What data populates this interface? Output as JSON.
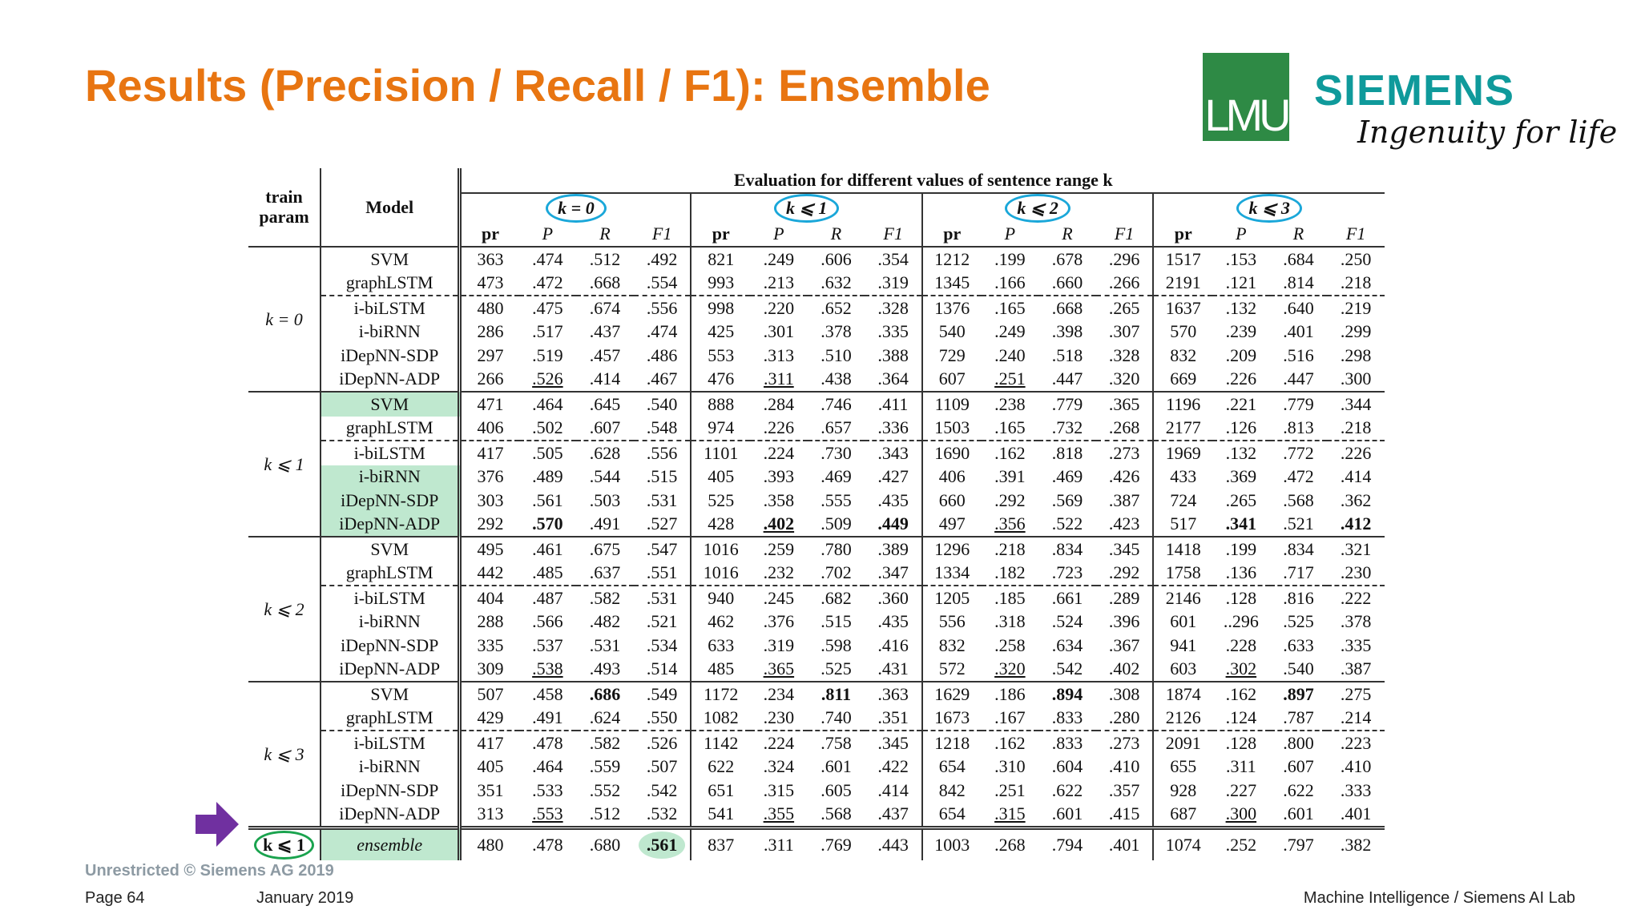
{
  "title": "Results (Precision / Recall / F1): Ensemble",
  "logos": {
    "lmu": "LMU",
    "siemens": "SIEMENS",
    "tagline": "Ingenuity for life"
  },
  "table": {
    "col_headers": {
      "train_param": "train param",
      "model": "Model",
      "evaluation": "Evaluation for different values of sentence range k",
      "groups": [
        "k = 0",
        "k ⩽ 1",
        "k ⩽ 2",
        "k ⩽ 3"
      ],
      "metrics": [
        "pr",
        "P",
        "R",
        "F1"
      ]
    },
    "blocks": [
      {
        "param": "k = 0",
        "rows": [
          {
            "model": "SVM",
            "values": [
              "363",
              ".474",
              ".512",
              ".492",
              "821",
              ".249",
              ".606",
              ".354",
              "1212",
              ".199",
              ".678",
              ".296",
              "1517",
              ".153",
              ".684",
              ".250"
            ]
          },
          {
            "model": "graphLSTM",
            "values": [
              "473",
              ".472",
              ".668",
              ".554",
              "993",
              ".213",
              ".632",
              ".319",
              "1345",
              ".166",
              ".660",
              ".266",
              "2191",
              ".121",
              ".814",
              ".218"
            ]
          },
          {
            "model": "i-biLSTM",
            "values": [
              "480",
              ".475",
              ".674",
              ".556",
              "998",
              ".220",
              ".652",
              ".328",
              "1376",
              ".165",
              ".668",
              ".265",
              "1637",
              ".132",
              ".640",
              ".219"
            ]
          },
          {
            "model": "i-biRNN",
            "values": [
              "286",
              ".517",
              ".437",
              ".474",
              "425",
              ".301",
              ".378",
              ".335",
              "540",
              ".249",
              ".398",
              ".307",
              "570",
              ".239",
              ".401",
              ".299"
            ]
          },
          {
            "model": "iDepNN-SDP",
            "values": [
              "297",
              ".519",
              ".457",
              ".486",
              "553",
              ".313",
              ".510",
              ".388",
              "729",
              ".240",
              ".518",
              ".328",
              "832",
              ".209",
              ".516",
              ".298"
            ]
          },
          {
            "model": "iDepNN-ADP",
            "values": [
              "266",
              ".526",
              ".414",
              ".467",
              "476",
              ".311",
              ".438",
              ".364",
              "607",
              ".251",
              ".447",
              ".320",
              "669",
              ".226",
              ".447",
              ".300"
            ]
          }
        ]
      },
      {
        "param": "k ⩽ 1",
        "rows": [
          {
            "model": "SVM",
            "values": [
              "471",
              ".464",
              ".645",
              ".540",
              "888",
              ".284",
              ".746",
              ".411",
              "1109",
              ".238",
              ".779",
              ".365",
              "1196",
              ".221",
              ".779",
              ".344"
            ]
          },
          {
            "model": "graphLSTM",
            "values": [
              "406",
              ".502",
              ".607",
              ".548",
              "974",
              ".226",
              ".657",
              ".336",
              "1503",
              ".165",
              ".732",
              ".268",
              "2177",
              ".126",
              ".813",
              ".218"
            ]
          },
          {
            "model": "i-biLSTM",
            "values": [
              "417",
              ".505",
              ".628",
              ".556",
              "1101",
              ".224",
              ".730",
              ".343",
              "1690",
              ".162",
              ".818",
              ".273",
              "1969",
              ".132",
              ".772",
              ".226"
            ]
          },
          {
            "model": "i-biRNN",
            "values": [
              "376",
              ".489",
              ".544",
              ".515",
              "405",
              ".393",
              ".469",
              ".427",
              "406",
              ".391",
              ".469",
              ".426",
              "433",
              ".369",
              ".472",
              ".414"
            ]
          },
          {
            "model": "iDepNN-SDP",
            "values": [
              "303",
              ".561",
              ".503",
              ".531",
              "525",
              ".358",
              ".555",
              ".435",
              "660",
              ".292",
              ".569",
              ".387",
              "724",
              ".265",
              ".568",
              ".362"
            ]
          },
          {
            "model": "iDepNN-ADP",
            "values": [
              "292",
              ".570",
              ".491",
              ".527",
              "428",
              ".402",
              ".509",
              ".449",
              "497",
              ".356",
              ".522",
              ".423",
              "517",
              ".341",
              ".521",
              ".412"
            ]
          }
        ]
      },
      {
        "param": "k ⩽ 2",
        "rows": [
          {
            "model": "SVM",
            "values": [
              "495",
              ".461",
              ".675",
              ".547",
              "1016",
              ".259",
              ".780",
              ".389",
              "1296",
              ".218",
              ".834",
              ".345",
              "1418",
              ".199",
              ".834",
              ".321"
            ]
          },
          {
            "model": "graphLSTM",
            "values": [
              "442",
              ".485",
              ".637",
              ".551",
              "1016",
              ".232",
              ".702",
              ".347",
              "1334",
              ".182",
              ".723",
              ".292",
              "1758",
              ".136",
              ".717",
              ".230"
            ]
          },
          {
            "model": "i-biLSTM",
            "values": [
              "404",
              ".487",
              ".582",
              ".531",
              "940",
              ".245",
              ".682",
              ".360",
              "1205",
              ".185",
              ".661",
              ".289",
              "2146",
              ".128",
              ".816",
              ".222"
            ]
          },
          {
            "model": "i-biRNN",
            "values": [
              "288",
              ".566",
              ".482",
              ".521",
              "462",
              ".376",
              ".515",
              ".435",
              "556",
              ".318",
              ".524",
              ".396",
              "601",
              "..296",
              ".525",
              ".378"
            ]
          },
          {
            "model": "iDepNN-SDP",
            "values": [
              "335",
              ".537",
              ".531",
              ".534",
              "633",
              ".319",
              ".598",
              ".416",
              "832",
              ".258",
              ".634",
              ".367",
              "941",
              ".228",
              ".633",
              ".335"
            ]
          },
          {
            "model": "iDepNN-ADP",
            "values": [
              "309",
              ".538",
              ".493",
              ".514",
              "485",
              ".365",
              ".525",
              ".431",
              "572",
              ".320",
              ".542",
              ".402",
              "603",
              ".302",
              ".540",
              ".387"
            ]
          }
        ]
      },
      {
        "param": "k ⩽ 3",
        "rows": [
          {
            "model": "SVM",
            "values": [
              "507",
              ".458",
              ".686",
              ".549",
              "1172",
              ".234",
              ".811",
              ".363",
              "1629",
              ".186",
              ".894",
              ".308",
              "1874",
              ".162",
              ".897",
              ".275"
            ]
          },
          {
            "model": "graphLSTM",
            "values": [
              "429",
              ".491",
              ".624",
              ".550",
              "1082",
              ".230",
              ".740",
              ".351",
              "1673",
              ".167",
              ".833",
              ".280",
              "2126",
              ".124",
              ".787",
              ".214"
            ]
          },
          {
            "model": "i-biLSTM",
            "values": [
              "417",
              ".478",
              ".582",
              ".526",
              "1142",
              ".224",
              ".758",
              ".345",
              "1218",
              ".162",
              ".833",
              ".273",
              "2091",
              ".128",
              ".800",
              ".223"
            ]
          },
          {
            "model": "i-biRNN",
            "values": [
              "405",
              ".464",
              ".559",
              ".507",
              "622",
              ".324",
              ".601",
              ".422",
              "654",
              ".310",
              ".604",
              ".410",
              "655",
              ".311",
              ".607",
              ".410"
            ]
          },
          {
            "model": "iDepNN-SDP",
            "values": [
              "351",
              ".533",
              ".552",
              ".542",
              "651",
              ".315",
              ".605",
              ".414",
              "842",
              ".251",
              ".622",
              ".357",
              "928",
              ".227",
              ".622",
              ".333"
            ]
          },
          {
            "model": "iDepNN-ADP",
            "values": [
              "313",
              ".553",
              ".512",
              ".532",
              "541",
              ".355",
              ".568",
              ".437",
              "654",
              ".315",
              ".601",
              ".415",
              "687",
              ".300",
              ".601",
              ".401"
            ]
          }
        ]
      }
    ],
    "ensemble": {
      "param": "k ⩽ 1",
      "model": "ensemble",
      "values": [
        "480",
        ".478",
        ".680",
        ".561",
        "837",
        ".311",
        ".769",
        ".443",
        "1003",
        ".268",
        ".794",
        ".401",
        "1074",
        ".252",
        ".797",
        ".382"
      ]
    }
  },
  "footer": {
    "unrestricted": "Unrestricted © Siemens AG 2019",
    "page": "Page 64",
    "date": "January 2019",
    "lab": "Machine Intelligence / Siemens AI Lab"
  },
  "colors": {
    "title": "#e87511",
    "siemens": "#0f9a9b",
    "lmu": "#2e8a45",
    "highlight": "#bfe8cf",
    "circle_blue": "#1aa7d9",
    "circle_green": "#1aa34e",
    "arrow": "#7030a0"
  }
}
